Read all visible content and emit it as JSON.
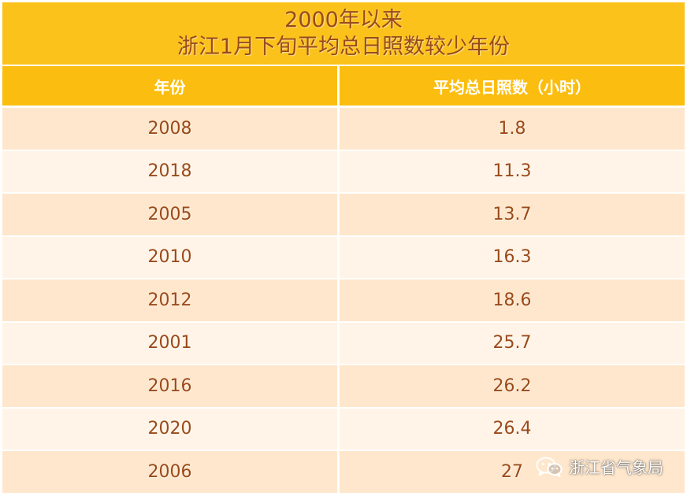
{
  "title": {
    "line1": "2000年以来",
    "line2": "浙江1月下旬平均总日照数较少年份"
  },
  "table": {
    "headers": {
      "year": "年份",
      "hours": "平均总日照数（小时）"
    },
    "rows": [
      {
        "year": "2008",
        "hours": "1.8"
      },
      {
        "year": "2018",
        "hours": "11.3"
      },
      {
        "year": "2005",
        "hours": "13.7"
      },
      {
        "year": "2010",
        "hours": "16.3"
      },
      {
        "year": "2012",
        "hours": "18.6"
      },
      {
        "year": "2001",
        "hours": "25.7"
      },
      {
        "year": "2016",
        "hours": "26.2"
      },
      {
        "year": "2020",
        "hours": "26.4"
      },
      {
        "year": "2006",
        "hours": "27"
      }
    ]
  },
  "watermark": {
    "icon": "wechat-icon",
    "text": "浙江省气象局"
  },
  "colors": {
    "title_bg": "#fbc21b",
    "header_bg": "#fbbd0f",
    "text": "#9a4a1a",
    "row_odd": "#fee7cc",
    "row_even": "#fff4e7"
  }
}
